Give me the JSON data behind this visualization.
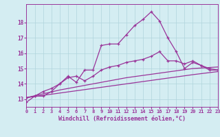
{
  "xlabel": "Windchill (Refroidissement éolien,°C)",
  "background_color": "#d4edf2",
  "line_color": "#993399",
  "x_min": 0,
  "x_max": 23,
  "y_min": 12.5,
  "y_max": 19.2,
  "y_ticks": [
    13,
    14,
    15,
    16,
    17,
    18
  ],
  "x_ticks": [
    0,
    1,
    2,
    3,
    4,
    5,
    6,
    7,
    8,
    9,
    10,
    11,
    12,
    13,
    14,
    15,
    16,
    17,
    18,
    19,
    20,
    21,
    22,
    23
  ],
  "series": [
    {
      "x": [
        0,
        1,
        2,
        3,
        4,
        5,
        6,
        7,
        8,
        9,
        10,
        11,
        12,
        13,
        14,
        15,
        16,
        17,
        18,
        19,
        20,
        21,
        22,
        23
      ],
      "y": [
        12.8,
        13.2,
        13.2,
        13.5,
        14.0,
        14.5,
        14.1,
        14.9,
        14.9,
        16.5,
        16.6,
        16.6,
        17.2,
        17.8,
        18.2,
        18.7,
        18.1,
        17.0,
        16.1,
        15.0,
        15.4,
        15.2,
        14.9,
        14.9
      ],
      "marker": true
    },
    {
      "x": [
        0,
        1,
        2,
        3,
        4,
        5,
        6,
        7,
        8,
        9,
        10,
        11,
        12,
        13,
        14,
        15,
        16,
        17,
        18,
        19,
        20,
        21,
        22,
        23
      ],
      "y": [
        13.1,
        13.2,
        13.5,
        13.7,
        14.0,
        14.4,
        14.5,
        14.2,
        14.5,
        14.9,
        15.1,
        15.2,
        15.4,
        15.5,
        15.6,
        15.8,
        16.1,
        15.5,
        15.5,
        15.3,
        15.5,
        15.2,
        15.0,
        14.9
      ],
      "marker": true
    },
    {
      "x": [
        0,
        4,
        8,
        12,
        16,
        20,
        23
      ],
      "y": [
        13.1,
        13.6,
        14.0,
        14.4,
        14.7,
        15.0,
        15.1
      ],
      "marker": false
    },
    {
      "x": [
        0,
        4,
        8,
        12,
        16,
        20,
        23
      ],
      "y": [
        13.1,
        13.4,
        13.7,
        14.0,
        14.3,
        14.6,
        14.8
      ],
      "marker": false
    }
  ]
}
